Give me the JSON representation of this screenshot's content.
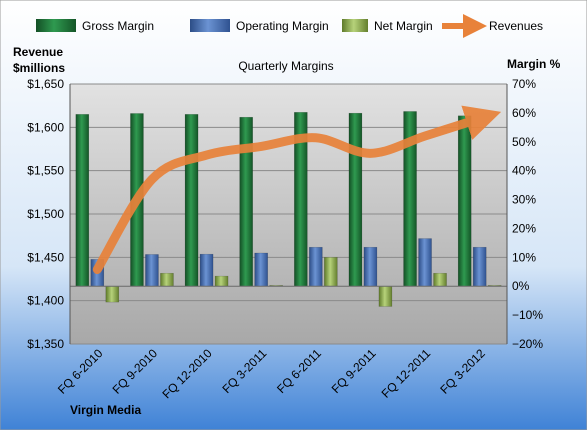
{
  "chart_data": {
    "type": "bar",
    "title": "Quarterly Margins",
    "left_axis_label_line1": "Revenue",
    "left_axis_label_line2": "$millions",
    "right_axis_label": "Margin %",
    "footer": "Virgin Media",
    "categories": [
      "FQ 6-2010",
      "FQ 9-2010",
      "FQ 12-2010",
      "FQ 3-2011",
      "FQ 6-2011",
      "FQ 9-2011",
      "FQ 12-2011",
      "FQ 3-2012"
    ],
    "left_axis": {
      "min": 1350,
      "max": 1650,
      "step": 50,
      "tick_labels": [
        "$1,350",
        "$1,400",
        "$1,450",
        "$1,500",
        "$1,550",
        "$1,600",
        "$1,650"
      ]
    },
    "right_axis": {
      "min": -20,
      "max": 70,
      "step": 10,
      "tick_labels": [
        "−20%",
        "−10%",
        "0%",
        "10%",
        "20%",
        "30%",
        "40%",
        "50%",
        "60%",
        "70%"
      ]
    },
    "legend_placement": "top",
    "series": [
      {
        "name": "Gross Margin",
        "axis": "right",
        "kind": "bar",
        "color": "#1e7a3a",
        "values": [
          59.5,
          59.8,
          59.5,
          58.5,
          60.2,
          59.9,
          60.5,
          59.0
        ]
      },
      {
        "name": "Operating Margin",
        "axis": "right",
        "kind": "bar",
        "color": "#4a74b8",
        "values": [
          9.3,
          11.0,
          11.1,
          11.5,
          13.5,
          13.5,
          16.5,
          13.5
        ]
      },
      {
        "name": "Net Margin",
        "axis": "right",
        "kind": "bar",
        "color": "#8fb04d",
        "values": [
          -5.5,
          4.5,
          3.5,
          0.3,
          10.0,
          -7.0,
          4.5,
          0.3
        ]
      },
      {
        "name": "Revenues",
        "axis": "left",
        "kind": "line",
        "color": "#e8823a",
        "values": [
          1436,
          1540,
          1568,
          1578,
          1588,
          1570,
          1590,
          1610
        ]
      }
    ]
  }
}
